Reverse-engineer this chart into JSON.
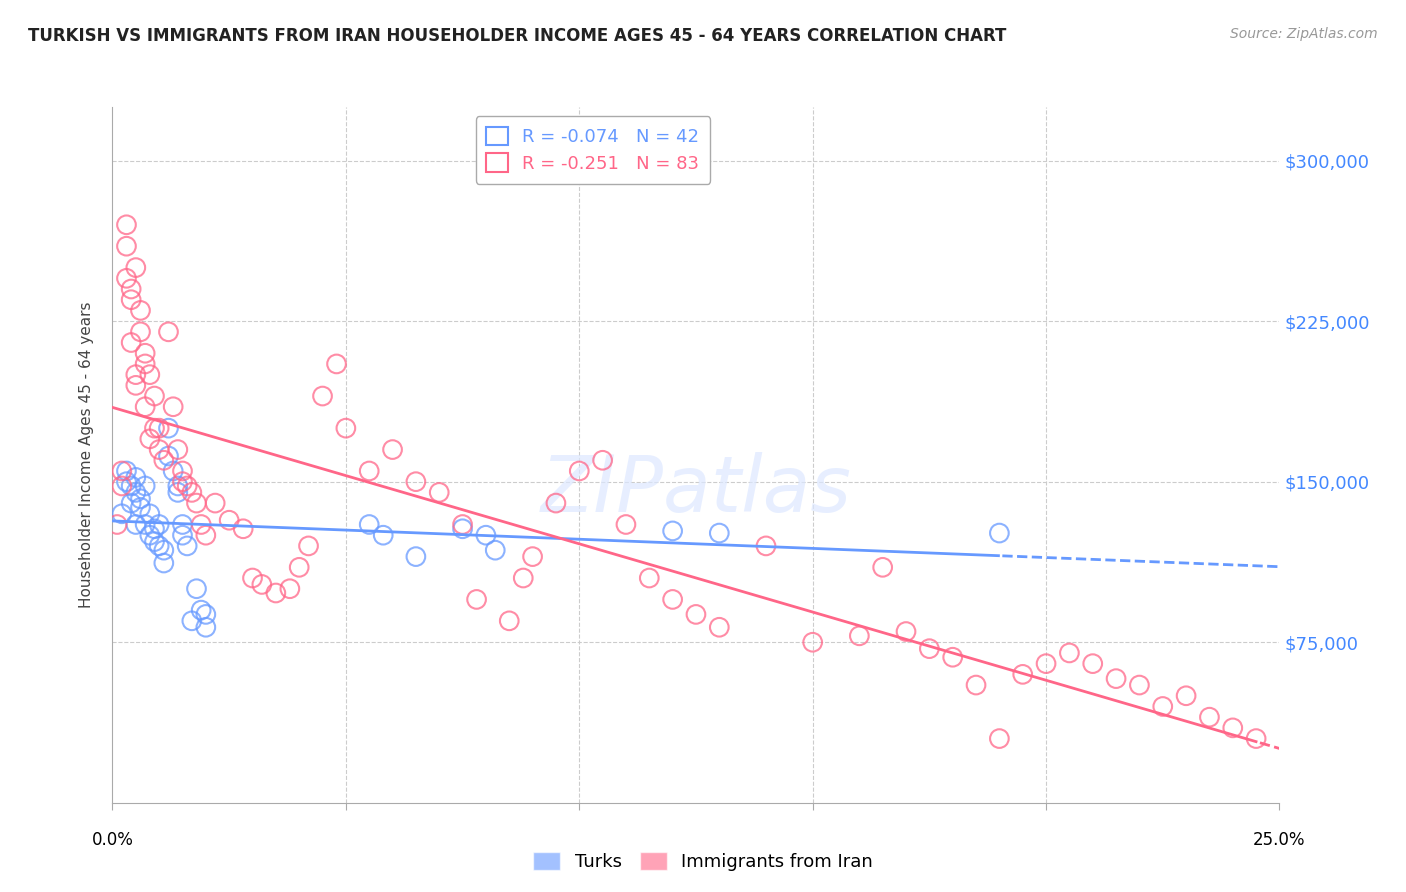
{
  "title": "TURKISH VS IMMIGRANTS FROM IRAN HOUSEHOLDER INCOME AGES 45 - 64 YEARS CORRELATION CHART",
  "source": "Source: ZipAtlas.com",
  "ylabel": "Householder Income Ages 45 - 64 years",
  "yticks": [
    0,
    75000,
    150000,
    225000,
    300000
  ],
  "ytick_labels": [
    "",
    "$75,000",
    "$150,000",
    "$225,000",
    "$300,000"
  ],
  "xmin": 0.0,
  "xmax": 0.25,
  "ymin": 0,
  "ymax": 325000,
  "turks_color": "#6699ff",
  "iran_color": "#ff6688",
  "turks_R": -0.074,
  "turks_N": 42,
  "iran_R": -0.251,
  "iran_N": 83,
  "legend_label_1": "Turks",
  "legend_label_2": "Immigrants from Iran",
  "watermark": "ZIPatlas",
  "turks_x": [
    0.002,
    0.003,
    0.003,
    0.004,
    0.004,
    0.005,
    0.005,
    0.005,
    0.006,
    0.006,
    0.007,
    0.007,
    0.008,
    0.008,
    0.009,
    0.009,
    0.01,
    0.01,
    0.011,
    0.011,
    0.012,
    0.012,
    0.013,
    0.014,
    0.014,
    0.015,
    0.015,
    0.016,
    0.017,
    0.018,
    0.019,
    0.02,
    0.02,
    0.055,
    0.058,
    0.065,
    0.075,
    0.08,
    0.082,
    0.12,
    0.13,
    0.19
  ],
  "turks_y": [
    135000,
    155000,
    150000,
    148000,
    140000,
    152000,
    145000,
    130000,
    142000,
    138000,
    148000,
    130000,
    135000,
    125000,
    128000,
    122000,
    130000,
    120000,
    118000,
    112000,
    175000,
    162000,
    155000,
    148000,
    145000,
    130000,
    125000,
    120000,
    85000,
    100000,
    90000,
    88000,
    82000,
    130000,
    125000,
    115000,
    128000,
    125000,
    118000,
    127000,
    126000,
    126000
  ],
  "iran_x": [
    0.001,
    0.002,
    0.002,
    0.003,
    0.003,
    0.003,
    0.004,
    0.004,
    0.004,
    0.005,
    0.005,
    0.005,
    0.006,
    0.006,
    0.007,
    0.007,
    0.007,
    0.008,
    0.008,
    0.009,
    0.009,
    0.01,
    0.01,
    0.011,
    0.012,
    0.013,
    0.014,
    0.015,
    0.015,
    0.016,
    0.017,
    0.018,
    0.019,
    0.02,
    0.022,
    0.025,
    0.028,
    0.03,
    0.032,
    0.035,
    0.038,
    0.04,
    0.042,
    0.045,
    0.048,
    0.05,
    0.055,
    0.06,
    0.065,
    0.07,
    0.075,
    0.078,
    0.085,
    0.088,
    0.09,
    0.095,
    0.1,
    0.105,
    0.11,
    0.115,
    0.12,
    0.125,
    0.13,
    0.14,
    0.15,
    0.16,
    0.165,
    0.17,
    0.175,
    0.18,
    0.185,
    0.19,
    0.195,
    0.2,
    0.205,
    0.21,
    0.215,
    0.22,
    0.225,
    0.23,
    0.235,
    0.24,
    0.245
  ],
  "iran_y": [
    130000,
    155000,
    148000,
    270000,
    260000,
    245000,
    240000,
    235000,
    215000,
    200000,
    195000,
    250000,
    230000,
    220000,
    210000,
    205000,
    185000,
    200000,
    170000,
    190000,
    175000,
    175000,
    165000,
    160000,
    220000,
    185000,
    165000,
    155000,
    150000,
    148000,
    145000,
    140000,
    130000,
    125000,
    140000,
    132000,
    128000,
    105000,
    102000,
    98000,
    100000,
    110000,
    120000,
    190000,
    205000,
    175000,
    155000,
    165000,
    150000,
    145000,
    130000,
    95000,
    85000,
    105000,
    115000,
    140000,
    155000,
    160000,
    130000,
    105000,
    95000,
    88000,
    82000,
    120000,
    75000,
    78000,
    110000,
    80000,
    72000,
    68000,
    55000,
    30000,
    60000,
    65000,
    70000,
    65000,
    58000,
    55000,
    45000,
    50000,
    40000,
    35000,
    30000
  ]
}
